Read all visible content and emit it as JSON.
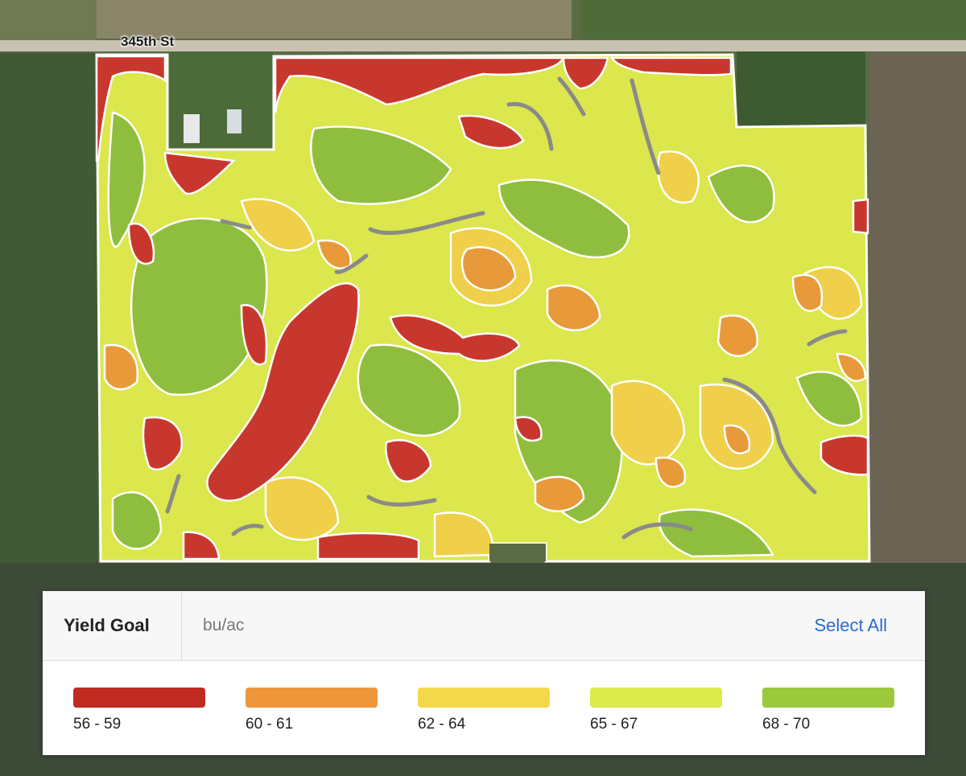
{
  "map": {
    "road_label": "345th St",
    "zone_colors": {
      "red": "#c8372d",
      "orange": "#e89a3a",
      "yellow": "#f0cf4a",
      "lime": "#d3e04a",
      "green": "#8fbe3e"
    }
  },
  "panel": {
    "title": "Yield Goal",
    "unit": "bu/ac",
    "select_all": "Select All"
  },
  "legend": [
    {
      "label": "56 - 59",
      "color": "#bf2b22"
    },
    {
      "label": "60 - 61",
      "color": "#f0963a"
    },
    {
      "label": "62 - 64",
      "color": "#f5d84a"
    },
    {
      "label": "65 - 67",
      "color": "#dcea4a"
    },
    {
      "label": "68 - 70",
      "color": "#9cc83c"
    }
  ]
}
